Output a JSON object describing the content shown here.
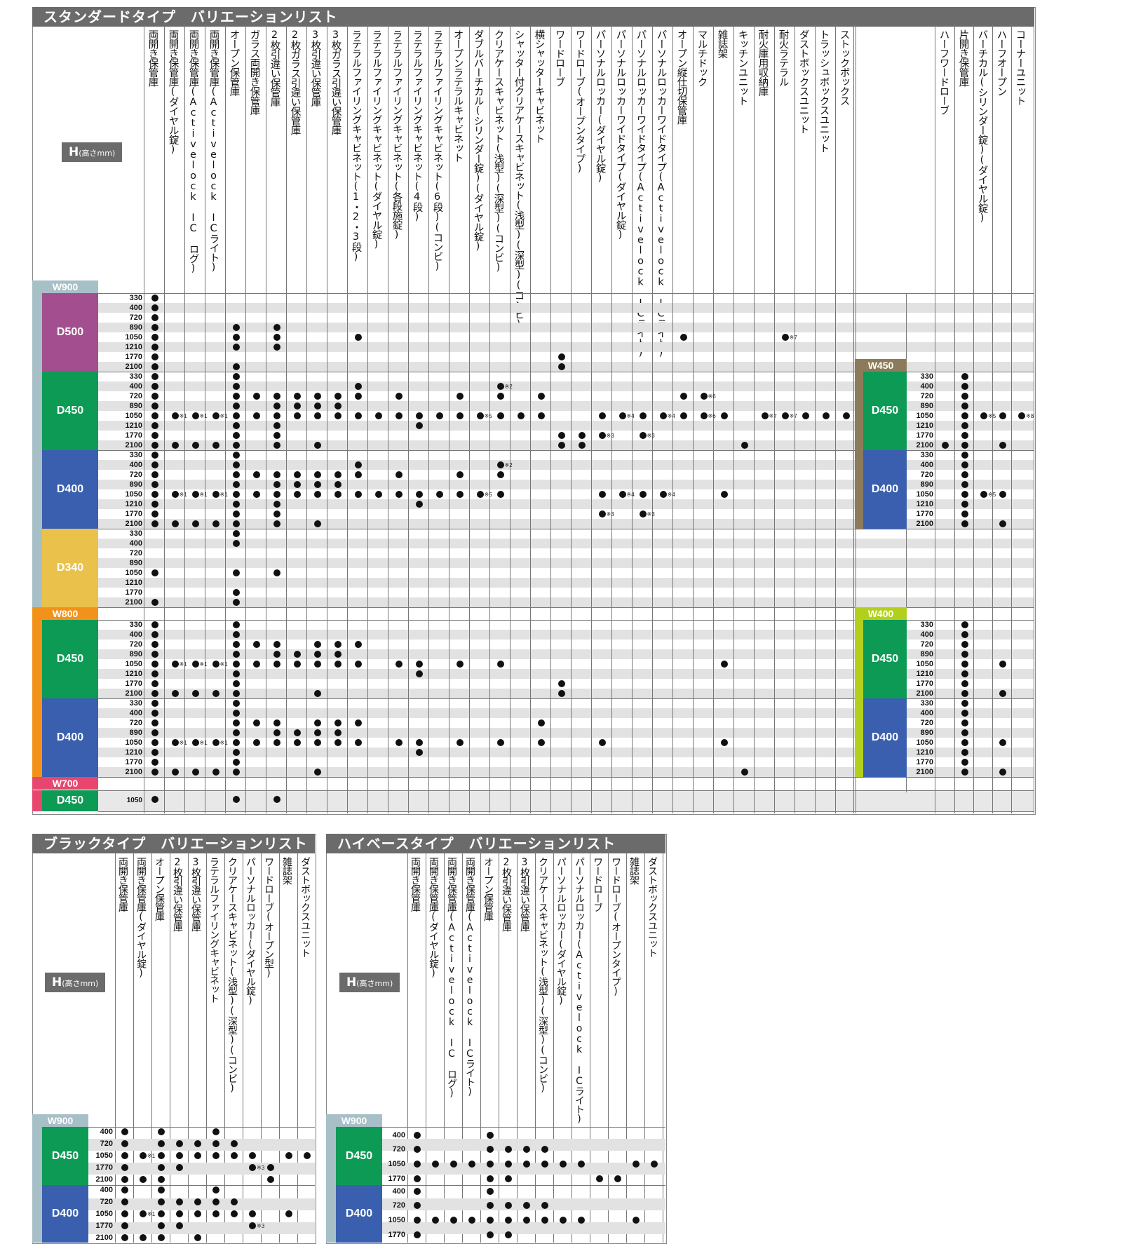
{
  "standard": {
    "title": "スタンダードタイプ　バリエーションリスト",
    "h_label": "H",
    "h_unit": "(高さmm)",
    "columns": [
      "両開き保管庫",
      "両開き保管庫(ダイヤル錠)",
      "両開き保管庫(Activelock IC ログ)",
      "両開き保管庫(Activelock ICライト)",
      "オープン保管庫",
      "ガラス両開き保管庫",
      "2枚引違い保管庫",
      "2枚ガラス引違い保管庫",
      "3枚引違い保管庫",
      "3枚ガラス引違い保管庫",
      "ラテラルファイリングキャビネット(1・2・3段)",
      "ラテラルファイリングキャビネット(ダイヤル錠)",
      "ラテラルファイリングキャビネット(各段施錠)",
      "ラテラルファイリングキャビネット(4段)",
      "ラテラルファイリングキャビネット(6段)(コンビ)",
      "オープンラテラルキャビネット",
      "ダブルバーチカル(シリンダー錠)(ダイヤル錠)",
      "クリアケースキャビネット(浅型)(深型)(コンビ)",
      "シャッター付クリアケースキャビネット(浅型)(深型)(コンビ)",
      "横シャッターキャビネット",
      "ワードローブ",
      "ワードローブ(オープンタイプ)",
      "パーソナルロッカー(ダイヤル錠)",
      "パーソナルロッカーワイドタイプ(ダイヤル錠)",
      "パーソナルロッカーワイドタイプ(Activelock ICライト)",
      "パーソナルロッカーワイドタイプ(Activelock ICライト)",
      "オープン縦仕切保管庫",
      "マルチドック",
      "雑誌架",
      "キッチンユニット",
      "耐火庫用収納庫",
      "耐火ラテラル",
      "ダストボックスユニット",
      "トラッシュボックスユニット",
      "ストックボックス"
    ],
    "right_columns": [
      "ハーフワードローブ",
      "片開き保管庫",
      "バーチカル(シリンダー錠)(ダイヤル錠)",
      "ハーフオープン",
      "コーナーユニット"
    ],
    "widths": {
      "w900": "W900",
      "w800": "W800",
      "w700": "W700",
      "w450": "W450",
      "w400": "W400"
    },
    "depths": {
      "d500": "D500",
      "d450": "D450",
      "d400": "D400",
      "d340": "D340"
    },
    "heights": [
      "330",
      "400",
      "720",
      "890",
      "1050",
      "1210",
      "1770",
      "2100"
    ],
    "single_height": "1050",
    "notes": {
      "n1": "※1",
      "n2": "※2",
      "n3": "※3",
      "n4": "※4",
      "n5": "※5",
      "n6": "※6",
      "n7": "※7",
      "n8": "※8"
    }
  },
  "black": {
    "title": "ブラックタイプ　バリエーションリスト",
    "h_label": "H",
    "h_unit": "(高さmm)",
    "columns": [
      "両開き保管庫",
      "両開き保管庫(ダイヤル錠)",
      "オープン保管庫",
      "2枚引違い保管庫",
      "3枚引違い保管庫",
      "ラテラルファイリングキャビネット",
      "クリアケースキャビネット(浅型)(深型)(コンビ)",
      "パーソナルロッカー(ダイヤル錠)",
      "ワードローブ(オープン型)",
      "雑誌架",
      "ダストボックスユニット"
    ],
    "width": "W900",
    "depths": [
      "D450",
      "D400"
    ],
    "heights": [
      "400",
      "720",
      "1050",
      "1770",
      "2100"
    ]
  },
  "highbase": {
    "title": "ハイベースタイプ　バリエーションリスト",
    "h_label": "H",
    "h_unit": "(高さmm)",
    "columns": [
      "両開き保管庫",
      "両開き保管庫(ダイヤル錠)",
      "両開き保管庫(Activelock IC ログ)",
      "両開き保管庫(Activelock ICライト)",
      "オープン保管庫",
      "2枚引違い保管庫",
      "3枚引違い保管庫",
      "クリアケースキャビネット(浅型)(深型)(コンビ)",
      "パーソナルロッカー(ダイヤル錠)",
      "パーソナルロッカー(Activelock ICライト)",
      "ワードローブ",
      "ワードローブ(オープンタイプ)",
      "雑誌架",
      "ダストボックスユニット"
    ],
    "width": "W900",
    "depths": [
      "D450",
      "D400"
    ],
    "heights": [
      "400",
      "720",
      "1050",
      "1770"
    ]
  },
  "colors": {
    "title_bg": "#6b6b6b",
    "w900": "#a7bfc6",
    "w800": "#f2921b",
    "w700": "#e8466f",
    "w450": "#8c7b5a",
    "w400": "#b3cf1e",
    "d500": "#a34e8e",
    "d450": "#0d9a55",
    "d400": "#3a5fae",
    "d340": "#e9c14b"
  }
}
